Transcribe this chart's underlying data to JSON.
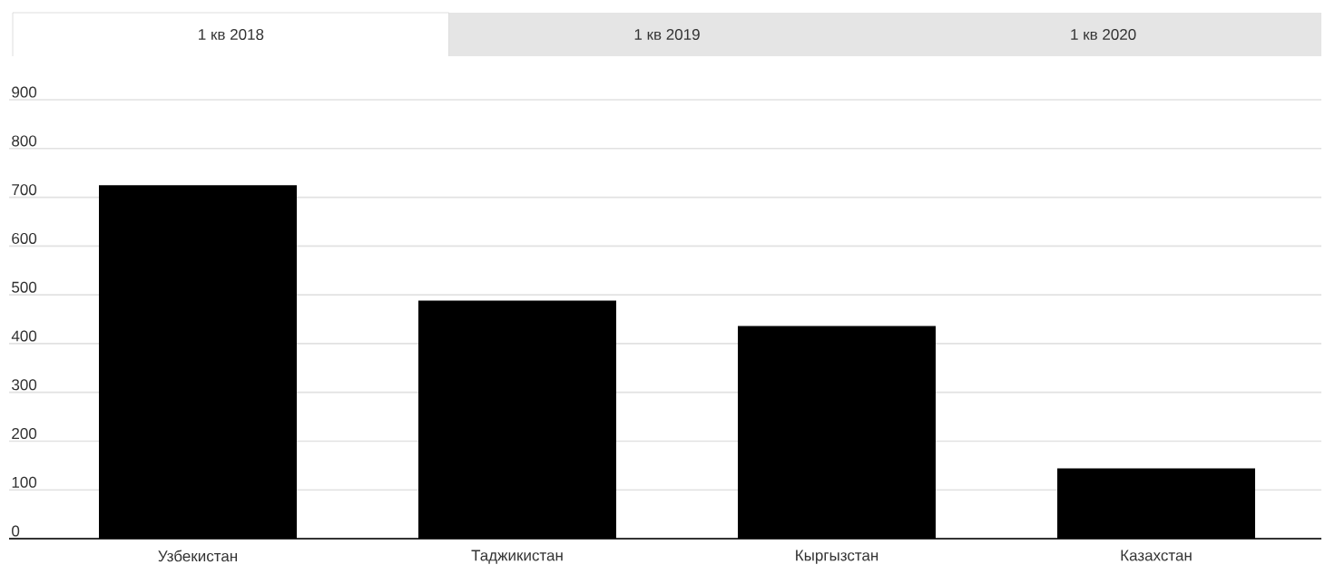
{
  "chart_data": {
    "type": "bar",
    "annotations": [
      "1 кв 2018",
      "1 кв 2019",
      "1 кв 2020"
    ],
    "categories": [
      "Узбекистан",
      "Таджикистан",
      "Кыргызстан",
      "Казахстан"
    ],
    "values": [
      725,
      488,
      436,
      144
    ],
    "color": "#000000",
    "ylim": [
      0,
      900
    ],
    "yticks": [
      0,
      100,
      200,
      300,
      400,
      500,
      600,
      700,
      800,
      900
    ],
    "grid": "y"
  }
}
